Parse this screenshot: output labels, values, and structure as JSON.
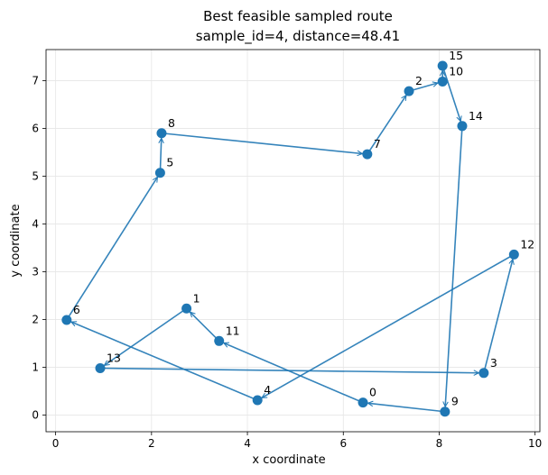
{
  "chart_data": {
    "type": "scatter",
    "title_line1": "Best feasible sampled route",
    "title_line2": "sample_id=4, distance=48.41",
    "xlabel": "x coordinate",
    "ylabel": "y coordinate",
    "xlim": [
      -0.2,
      10.1
    ],
    "ylim": [
      -0.35,
      7.65
    ],
    "xticks": [
      0,
      2,
      4,
      6,
      8,
      10
    ],
    "yticks": [
      0,
      1,
      2,
      3,
      4,
      5,
      6,
      7
    ],
    "grid": true,
    "color": "#1f77b4",
    "nodes": [
      {
        "id": "0",
        "x": 6.41,
        "y": 0.26
      },
      {
        "id": "1",
        "x": 2.73,
        "y": 2.23
      },
      {
        "id": "2",
        "x": 7.37,
        "y": 6.78
      },
      {
        "id": "3",
        "x": 8.93,
        "y": 0.88
      },
      {
        "id": "4",
        "x": 4.21,
        "y": 0.31
      },
      {
        "id": "5",
        "x": 2.18,
        "y": 5.07
      },
      {
        "id": "6",
        "x": 0.23,
        "y": 1.99
      },
      {
        "id": "7",
        "x": 6.5,
        "y": 5.46
      },
      {
        "id": "8",
        "x": 2.21,
        "y": 5.9
      },
      {
        "id": "9",
        "x": 8.12,
        "y": 0.07
      },
      {
        "id": "10",
        "x": 8.07,
        "y": 6.98
      },
      {
        "id": "11",
        "x": 3.41,
        "y": 1.55
      },
      {
        "id": "12",
        "x": 9.56,
        "y": 3.36
      },
      {
        "id": "13",
        "x": 0.93,
        "y": 0.98
      },
      {
        "id": "14",
        "x": 8.48,
        "y": 6.05
      },
      {
        "id": "15",
        "x": 8.07,
        "y": 7.31
      }
    ],
    "route": [
      "0",
      "11",
      "1",
      "13",
      "3",
      "12",
      "4",
      "6",
      "5",
      "8",
      "7",
      "2",
      "10",
      "15",
      "14",
      "9",
      "0"
    ]
  }
}
